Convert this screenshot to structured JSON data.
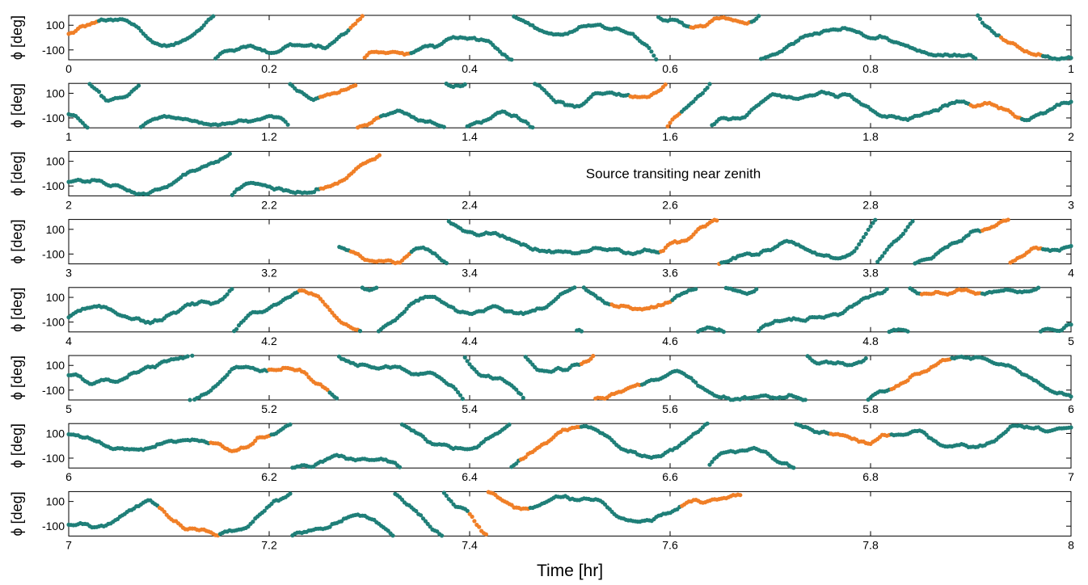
{
  "chart_data": {
    "type": "scatter",
    "xlabel": "Time [hr]",
    "ylabel": "ϕ [deg]",
    "ylim": [
      -180,
      180
    ],
    "yticks": [
      -100,
      100
    ],
    "ytick_labels": [
      "-100",
      "100"
    ],
    "colors": {
      "base": "#1f7f78",
      "highlight": "#f07f27"
    },
    "series_names": [
      "phase",
      "highlighted segments"
    ],
    "rows": [
      {
        "xmin": 0,
        "xmax": 1,
        "tick_labels": [
          "0",
          "0.2",
          "0.4",
          "0.6",
          "0.8",
          "1"
        ],
        "highlights": [
          [
            0,
            0.03
          ],
          [
            0.28,
            0.34
          ],
          [
            0.62,
            0.68
          ],
          [
            0.93,
            0.97
          ]
        ],
        "data_end": 1
      },
      {
        "xmin": 1,
        "xmax": 2,
        "tick_labels": [
          "1",
          "1.2",
          "1.4",
          "1.6",
          "1.8",
          "2"
        ],
        "highlights": [
          [
            1.25,
            1.31
          ],
          [
            1.56,
            1.61
          ],
          [
            1.9,
            1.95
          ]
        ],
        "data_end": 2
      },
      {
        "xmin": 2,
        "xmax": 3,
        "tick_labels": [
          "2",
          "2.2",
          "2.4",
          "2.6",
          "2.8",
          "3"
        ],
        "highlights": [
          [
            2.25,
            2.31
          ]
        ],
        "data_end": 2.31,
        "annotation": "Source transiting near zenith"
      },
      {
        "xmin": 3,
        "xmax": 4,
        "tick_labels": [
          "3",
          "3.2",
          "3.4",
          "3.6",
          "3.8",
          "4"
        ],
        "highlights": [
          [
            3.28,
            3.34
          ],
          [
            3.59,
            3.65
          ],
          [
            3.91,
            3.97
          ]
        ],
        "data_start": 3.27,
        "data_end": 4
      },
      {
        "xmin": 4,
        "xmax": 5,
        "tick_labels": [
          "4",
          "4.2",
          "4.4",
          "4.6",
          "4.8",
          "5"
        ],
        "highlights": [
          [
            4.23,
            4.29
          ],
          [
            4.54,
            4.6
          ],
          [
            4.85,
            4.91
          ]
        ],
        "data_end": 5
      },
      {
        "xmin": 5,
        "xmax": 6,
        "tick_labels": [
          "5",
          "5.2",
          "5.4",
          "5.6",
          "5.8",
          "6"
        ],
        "highlights": [
          [
            5.2,
            5.26
          ],
          [
            5.51,
            5.57
          ],
          [
            5.82,
            5.88
          ]
        ],
        "data_end": 6
      },
      {
        "xmin": 6,
        "xmax": 7,
        "tick_labels": [
          "6",
          "6.2",
          "6.4",
          "6.6",
          "6.8",
          "7"
        ],
        "highlights": [
          [
            6.14,
            6.2
          ],
          [
            6.45,
            6.51
          ],
          [
            6.76,
            6.82
          ]
        ],
        "data_end": 7
      },
      {
        "xmin": 7,
        "xmax": 8,
        "tick_labels": [
          "7",
          "7.2",
          "7.4",
          "7.6",
          "7.8",
          "8"
        ],
        "highlights": [
          [
            7.09,
            7.15
          ],
          [
            7.4,
            7.46
          ],
          [
            7.61,
            7.67
          ]
        ],
        "data_end": 7.67
      }
    ]
  }
}
